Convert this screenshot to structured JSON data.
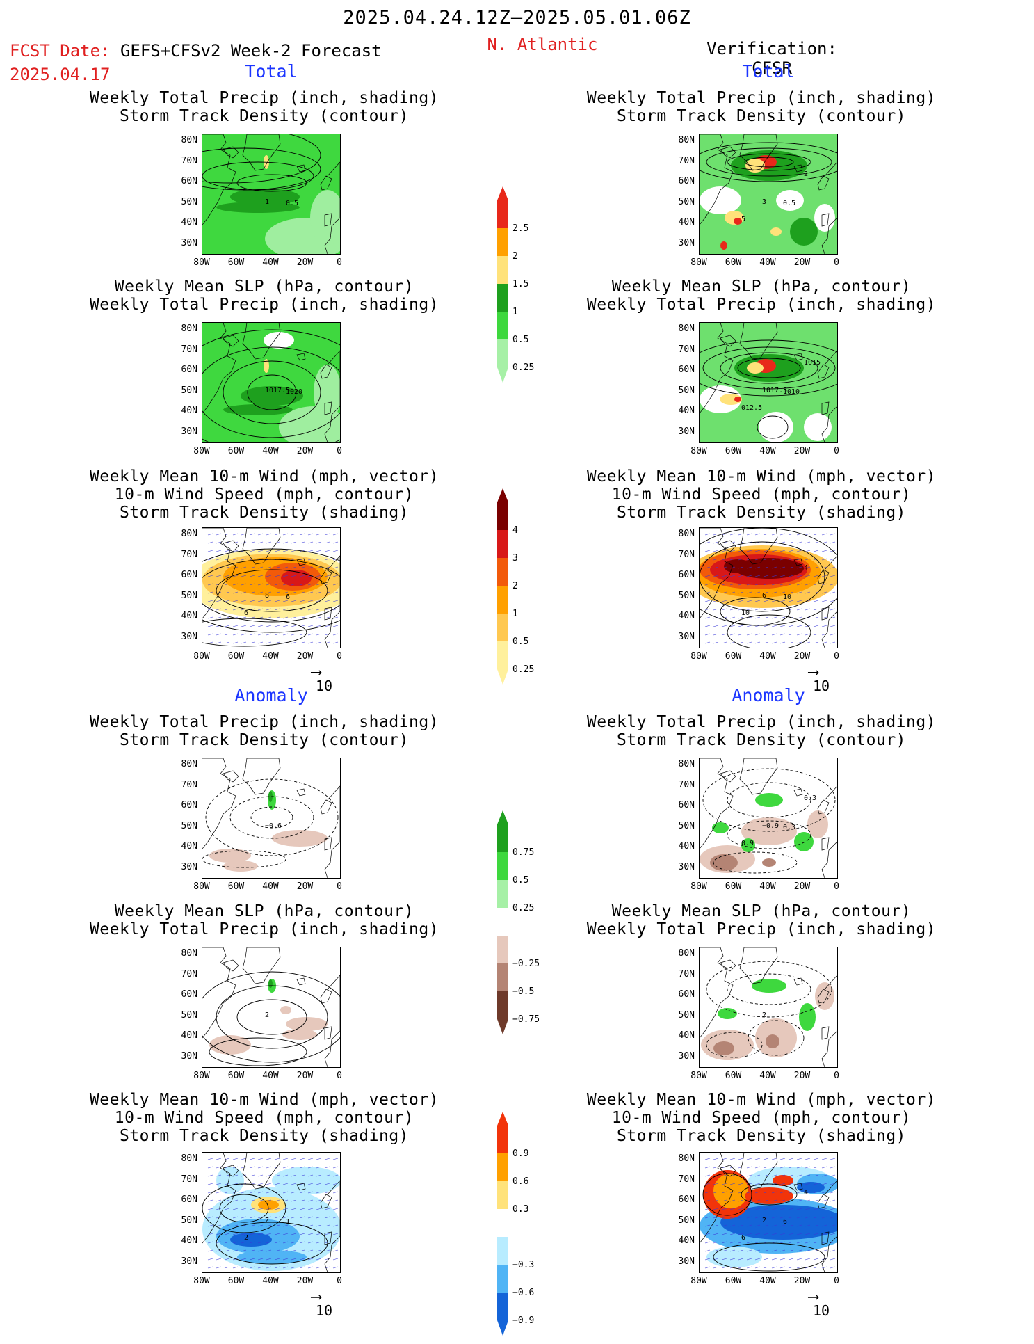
{
  "header": {
    "period": "2025.04.24.12Z–2025.05.01.06Z",
    "fcst_label": "FCST Date:",
    "fcst_model": "GEFS+CFSv2 Week-2 Forecast",
    "fcst_date": "2025.04.17",
    "region": "N. Atlantic",
    "verification": "Verification: CFSR"
  },
  "sections": {
    "total": "Total",
    "anomaly": "Anomaly"
  },
  "titles": {
    "precip_track": [
      "Weekly Total Precip (inch, shading)",
      "Storm Track Density (contour)"
    ],
    "slp_precip": [
      "Weekly Mean SLP (hPa, contour)",
      "Weekly Total Precip (inch, shading)"
    ],
    "wind_track": [
      "Weekly Mean 10-m Wind (mph, vector)",
      "10-m Wind Speed (mph, contour)",
      "Storm Track Density (shading)"
    ]
  },
  "axes": {
    "lat": [
      "80N",
      "70N",
      "60N",
      "50N",
      "40N",
      "30N"
    ],
    "lon": [
      "80W",
      "60W",
      "40W",
      "20W",
      "0"
    ]
  },
  "vector_ref": "10",
  "colorbars": {
    "precip_total": {
      "labels": [
        "2.5",
        "2",
        "1.5",
        "1",
        "0.5",
        "0.25"
      ],
      "colors": [
        "#e8281a",
        "#ffa000",
        "#ffe27a",
        "#1ea01e",
        "#3ed83e",
        "#a6f0a6"
      ]
    },
    "track_total": {
      "labels": [
        "4",
        "3",
        "2",
        "1",
        "0.5",
        "0.25"
      ],
      "colors": [
        "#7a0000",
        "#d81818",
        "#f25a0a",
        "#ffa000",
        "#ffc850",
        "#fff09c"
      ]
    },
    "precip_anom": {
      "labels": [
        "0.75",
        "0.5",
        "0.25",
        "−0.25",
        "−0.5",
        "−0.75"
      ],
      "colors": [
        "#1ea01e",
        "#3ed83e",
        "#a6f0a6",
        "#ffffff",
        "#e6c8bc",
        "#b48474",
        "#6e3a2a"
      ]
    },
    "track_anom": {
      "labels": [
        "0.9",
        "0.6",
        "0.3",
        "−0.3",
        "−0.6",
        "−0.9"
      ],
      "colors": [
        "#f2340a",
        "#ffa000",
        "#ffe27a",
        "#ffffff",
        "#b8ecff",
        "#50b4f5",
        "#1464d8"
      ]
    }
  },
  "panel_labels": {
    "fc_pt": [
      "1",
      "0.5"
    ],
    "ob_pt": [
      "3",
      "0.5",
      "5",
      "2"
    ],
    "fc_sp": [
      "1017.5",
      "1020"
    ],
    "ob_sp": [
      "1017.5",
      "1010",
      "012.5",
      "1015"
    ],
    "fc_wt": [
      "8",
      "6",
      "6"
    ],
    "ob_wt": [
      "6",
      "10",
      "10",
      "4"
    ],
    "fa_pt": [
      "−0.6"
    ],
    "oa_pt": [
      "−0.9",
      "0.3",
      "0.9",
      "0.3"
    ],
    "fa_sp": [
      "2"
    ],
    "oa_sp": [
      "2"
    ],
    "fa_wt": [
      "2",
      "1",
      "2"
    ],
    "oa_wt": [
      "2",
      "6",
      "6",
      "4"
    ]
  }
}
